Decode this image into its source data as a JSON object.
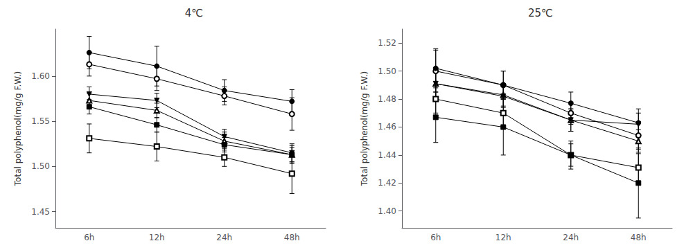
{
  "chart_data": [
    {
      "type": "line",
      "title": "4℃",
      "ylabel": "Total polyphenol(mg/g F.W.)",
      "categories": [
        "6h",
        "12h",
        "24h",
        "48h"
      ],
      "ylim": [
        1.432,
        1.652
      ],
      "yticks": [
        1.45,
        {
          "value": 1.5,
          "label": "1.50"
        },
        1.55,
        {
          "value": 1.6,
          "label": "1.60"
        }
      ],
      "grid": false,
      "color": "black",
      "series": [
        {
          "marker": "circle",
          "values": [
            1.626,
            1.611,
            1.584,
            1.572
          ],
          "yerr": [
            0.018,
            0.022,
            0.012,
            0.013
          ]
        },
        {
          "marker": "circle-open",
          "values": [
            1.613,
            1.597,
            1.578,
            1.558
          ],
          "yerr": [
            0.013,
            0.013,
            0.01,
            0.018
          ]
        },
        {
          "marker": "triangle-down",
          "values": [
            1.58,
            1.573,
            1.533,
            1.515
          ],
          "yerr": [
            0.008,
            0.008,
            0.008,
            0.01
          ]
        },
        {
          "marker": "triangle-up-open",
          "values": [
            1.573,
            1.562,
            1.528,
            1.513
          ],
          "yerr": [
            0.008,
            0.008,
            0.01,
            0.01
          ]
        },
        {
          "marker": "square",
          "values": [
            1.566,
            1.546,
            1.524,
            1.513
          ],
          "yerr": [
            0.008,
            0.008,
            0.008,
            0.008
          ]
        },
        {
          "marker": "square-open",
          "values": [
            1.531,
            1.522,
            1.51,
            1.492
          ],
          "yerr": [
            0.016,
            0.016,
            0.01,
            0.022
          ]
        }
      ]
    },
    {
      "type": "line",
      "title": "25℃",
      "ylabel": "Total polyphenol(mg/g F.W.)",
      "categories": [
        "6h",
        "12h",
        "24h",
        "48h"
      ],
      "ylim": [
        1.388,
        1.53
      ],
      "yticks": [
        {
          "value": 1.4,
          "label": "1.40"
        },
        1.42,
        1.44,
        1.46,
        1.48,
        {
          "value": 1.5,
          "label": "1.50"
        },
        1.52
      ],
      "grid": false,
      "color": "black",
      "series": [
        {
          "marker": "circle-open",
          "values": [
            1.5,
            1.49,
            1.47,
            1.454
          ],
          "yerr": [
            0.015,
            0.01,
            0.008,
            0.01
          ]
        },
        {
          "marker": "circle",
          "values": [
            1.502,
            1.49,
            1.477,
            1.463
          ],
          "yerr": [
            0.014,
            0.01,
            0.008,
            0.01
          ]
        },
        {
          "marker": "triangle-up-open",
          "values": [
            1.491,
            1.483,
            1.465,
            1.45
          ],
          "yerr": [
            0.01,
            0.008,
            0.008,
            0.008
          ]
        },
        {
          "marker": "triangle-down",
          "values": [
            1.491,
            1.482,
            1.465,
            1.462
          ],
          "yerr": [
            0.01,
            0.008,
            0.008,
            0.008
          ]
        },
        {
          "marker": "square-open",
          "values": [
            1.48,
            1.47,
            1.44,
            1.431
          ],
          "yerr": [
            0.01,
            0.01,
            0.008,
            0.01
          ]
        },
        {
          "marker": "square",
          "values": [
            1.467,
            1.46,
            1.44,
            1.42
          ],
          "yerr": [
            0.018,
            0.02,
            0.01,
            0.025
          ]
        }
      ]
    }
  ]
}
